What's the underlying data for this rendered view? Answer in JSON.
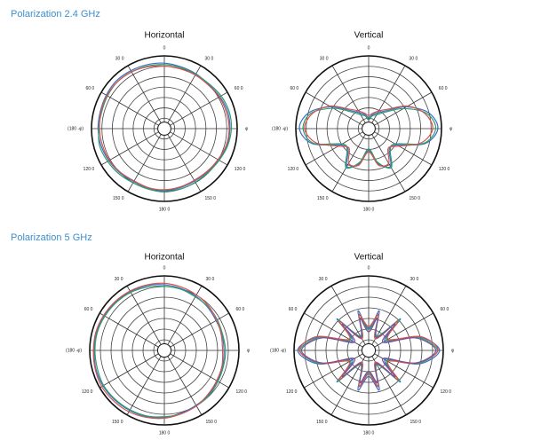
{
  "headings": [
    "Polarization 2.4 GHz",
    "Polarization 5 GHz"
  ],
  "chart_data": [
    {
      "type": "polar",
      "title": "Horizontal",
      "theta": [
        0,
        15,
        30,
        45,
        60,
        75,
        90,
        105,
        120,
        135,
        150,
        165,
        180,
        195,
        210,
        225,
        240,
        255,
        270,
        285,
        300,
        315,
        330,
        345
      ],
      "rlim": [
        0,
        1
      ],
      "grid_rings": 7,
      "thetaticks": [
        0,
        {
          "value": 30,
          "label": "30 0"
        },
        {
          "value": 60,
          "label": "60 0"
        },
        {
          "value": 90,
          "label": "φ"
        },
        {
          "value": 120,
          "label": "120 0"
        },
        {
          "value": 150,
          "label": "150 0"
        },
        {
          "value": 180,
          "label": "180 0"
        },
        {
          "value": 210,
          "label": "150 0"
        },
        {
          "value": 240,
          "label": "120 0"
        },
        {
          "value": 270,
          "label": "(180 -φ)"
        },
        {
          "value": 300,
          "label": "60 0"
        },
        {
          "value": 330,
          "label": "30 0"
        }
      ],
      "series": [
        {
          "color": "#3b6fc6",
          "values": [
            0.9,
            0.88,
            0.87,
            0.86,
            0.88,
            0.9,
            0.9,
            0.89,
            0.86,
            0.84,
            0.83,
            0.84,
            0.85,
            0.85,
            0.84,
            0.86,
            0.88,
            0.9,
            0.91,
            0.91,
            0.92,
            0.93,
            0.92,
            0.91
          ]
        },
        {
          "color": "#2f9e6e",
          "values": [
            0.88,
            0.87,
            0.86,
            0.87,
            0.9,
            0.92,
            0.92,
            0.9,
            0.87,
            0.85,
            0.85,
            0.86,
            0.87,
            0.86,
            0.86,
            0.88,
            0.9,
            0.92,
            0.9,
            0.89,
            0.9,
            0.91,
            0.9,
            0.89
          ]
        },
        {
          "color": "#d9534f",
          "values": [
            0.86,
            0.85,
            0.85,
            0.85,
            0.87,
            0.88,
            0.89,
            0.88,
            0.85,
            0.83,
            0.82,
            0.83,
            0.84,
            0.84,
            0.83,
            0.85,
            0.87,
            0.88,
            0.89,
            0.9,
            0.91,
            0.91,
            0.9,
            0.88
          ]
        }
      ]
    },
    {
      "type": "polar",
      "title": "Vertical",
      "theta": [
        0,
        15,
        30,
        45,
        60,
        75,
        90,
        105,
        120,
        135,
        150,
        165,
        180,
        195,
        210,
        225,
        240,
        255,
        270,
        285,
        300,
        315,
        330,
        345
      ],
      "rlim": [
        0,
        1
      ],
      "grid_rings": 7,
      "thetaticks": [
        0,
        {
          "value": 30,
          "label": "30 0"
        },
        {
          "value": 60,
          "label": "60 0"
        },
        {
          "value": 90,
          "label": "φ"
        },
        {
          "value": 120,
          "label": "120 0"
        },
        {
          "value": 150,
          "label": "150 0"
        },
        {
          "value": 180,
          "label": "180 0"
        },
        {
          "value": 210,
          "label": "150 0"
        },
        {
          "value": 240,
          "label": "120 0"
        },
        {
          "value": 270,
          "label": "(180 -φ)"
        },
        {
          "value": 300,
          "label": "60 0"
        },
        {
          "value": 330,
          "label": "30 0"
        }
      ],
      "series": [
        {
          "color": "#3b6fc6",
          "values": [
            0.15,
            0.2,
            0.25,
            0.35,
            0.6,
            0.85,
            0.95,
            0.8,
            0.45,
            0.4,
            0.6,
            0.5,
            0.3,
            0.5,
            0.6,
            0.4,
            0.45,
            0.8,
            0.95,
            0.85,
            0.6,
            0.35,
            0.25,
            0.2
          ]
        },
        {
          "color": "#2f9e6e",
          "values": [
            0.12,
            0.18,
            0.22,
            0.32,
            0.55,
            0.82,
            0.92,
            0.78,
            0.42,
            0.42,
            0.62,
            0.48,
            0.28,
            0.48,
            0.62,
            0.42,
            0.42,
            0.78,
            0.9,
            0.82,
            0.56,
            0.32,
            0.22,
            0.18
          ]
        },
        {
          "color": "#d9534f",
          "values": [
            0.18,
            0.22,
            0.28,
            0.38,
            0.62,
            0.8,
            0.88,
            0.75,
            0.48,
            0.38,
            0.55,
            0.52,
            0.32,
            0.52,
            0.55,
            0.38,
            0.48,
            0.75,
            0.88,
            0.8,
            0.62,
            0.38,
            0.28,
            0.22
          ]
        }
      ]
    },
    {
      "type": "polar",
      "title": "Horizontal",
      "theta": [
        0,
        15,
        30,
        45,
        60,
        75,
        90,
        105,
        120,
        135,
        150,
        165,
        180,
        195,
        210,
        225,
        240,
        255,
        270,
        285,
        300,
        315,
        330,
        345
      ],
      "rlim": [
        0,
        1
      ],
      "grid_rings": 7,
      "thetaticks": [
        0,
        {
          "value": 30,
          "label": "30 0"
        },
        {
          "value": 60,
          "label": "60 0"
        },
        {
          "value": 90,
          "label": "φ"
        },
        {
          "value": 120,
          "label": "120 0"
        },
        {
          "value": 150,
          "label": "150 0"
        },
        {
          "value": 180,
          "label": "180 0"
        },
        {
          "value": 210,
          "label": "150 0"
        },
        {
          "value": 240,
          "label": "120 0"
        },
        {
          "value": 270,
          "label": "(180 -φ)"
        },
        {
          "value": 300,
          "label": "60 0"
        },
        {
          "value": 330,
          "label": "30 0"
        }
      ],
      "series": [
        {
          "color": "#3b6fc6",
          "values": [
            0.88,
            0.86,
            0.84,
            0.82,
            0.8,
            0.8,
            0.8,
            0.81,
            0.82,
            0.84,
            0.85,
            0.87,
            0.9,
            0.92,
            0.93,
            0.94,
            0.95,
            0.95,
            0.94,
            0.94,
            0.93,
            0.92,
            0.91,
            0.9
          ]
        },
        {
          "color": "#2f9e6e",
          "values": [
            0.86,
            0.85,
            0.83,
            0.83,
            0.82,
            0.81,
            0.82,
            0.82,
            0.83,
            0.85,
            0.86,
            0.88,
            0.89,
            0.91,
            0.92,
            0.93,
            0.94,
            0.93,
            0.93,
            0.93,
            0.92,
            0.91,
            0.9,
            0.88
          ]
        },
        {
          "color": "#d9534f",
          "values": [
            0.9,
            0.88,
            0.86,
            0.84,
            0.81,
            0.79,
            0.78,
            0.8,
            0.81,
            0.83,
            0.86,
            0.88,
            0.91,
            0.93,
            0.95,
            0.96,
            0.97,
            0.96,
            0.95,
            0.95,
            0.94,
            0.93,
            0.92,
            0.91
          ]
        }
      ]
    },
    {
      "type": "polar",
      "title": "Vertical",
      "theta": [
        0,
        15,
        30,
        45,
        60,
        75,
        90,
        105,
        120,
        135,
        150,
        165,
        180,
        195,
        210,
        225,
        240,
        255,
        270,
        285,
        300,
        315,
        330,
        345
      ],
      "rlim": [
        0,
        1
      ],
      "grid_rings": 7,
      "thetaticks": [
        0,
        {
          "value": 30,
          "label": "30 0"
        },
        {
          "value": 60,
          "label": "60 0"
        },
        {
          "value": 90,
          "label": "φ"
        },
        {
          "value": 120,
          "label": "120 0"
        },
        {
          "value": 150,
          "label": "150 0"
        },
        {
          "value": 180,
          "label": "180 0"
        },
        {
          "value": 210,
          "label": "150 0"
        },
        {
          "value": 240,
          "label": "120 0"
        },
        {
          "value": 270,
          "label": "(180 -φ)"
        },
        {
          "value": 300,
          "label": "60 0"
        },
        {
          "value": 330,
          "label": "30 0"
        }
      ],
      "series": [
        {
          "color": "#3b6fc6",
          "values": [
            0.3,
            0.55,
            0.2,
            0.6,
            0.25,
            0.7,
            0.95,
            0.7,
            0.25,
            0.6,
            0.2,
            0.55,
            0.35,
            0.55,
            0.2,
            0.6,
            0.25,
            0.7,
            0.95,
            0.7,
            0.25,
            0.6,
            0.2,
            0.55
          ]
        },
        {
          "color": "#2f9e6e",
          "values": [
            0.28,
            0.5,
            0.22,
            0.58,
            0.28,
            0.68,
            0.92,
            0.68,
            0.28,
            0.58,
            0.22,
            0.5,
            0.3,
            0.5,
            0.22,
            0.58,
            0.28,
            0.68,
            0.92,
            0.68,
            0.28,
            0.58,
            0.22,
            0.5
          ]
        },
        {
          "color": "#d9534f",
          "values": [
            0.32,
            0.5,
            0.18,
            0.55,
            0.3,
            0.72,
            0.93,
            0.66,
            0.3,
            0.55,
            0.18,
            0.5,
            0.32,
            0.5,
            0.18,
            0.55,
            0.3,
            0.66,
            0.93,
            0.72,
            0.3,
            0.55,
            0.18,
            0.5
          ]
        },
        {
          "color": "#7a4fa0",
          "values": [
            0.25,
            0.45,
            0.2,
            0.5,
            0.22,
            0.65,
            0.9,
            0.65,
            0.22,
            0.5,
            0.2,
            0.45,
            0.28,
            0.45,
            0.2,
            0.5,
            0.22,
            0.65,
            0.9,
            0.65,
            0.22,
            0.5,
            0.2,
            0.45
          ]
        }
      ]
    }
  ]
}
